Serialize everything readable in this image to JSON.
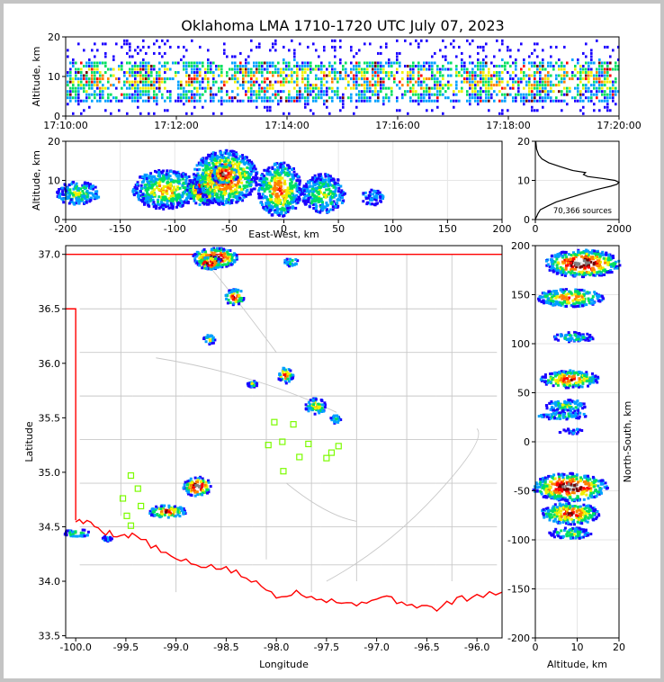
{
  "title": "Oklahoma LMA 1710-1720 UTC July 07, 2023",
  "colors": {
    "frame": "#c4c4c4",
    "state_border": "#ff0000",
    "county_lines": "#c8c8c8",
    "station_marker": "#7cfc00",
    "histogram_line": "#000000",
    "density_scale": [
      "#1a00ff",
      "#00a0ff",
      "#00e060",
      "#f0f000",
      "#ff8000",
      "#ff0000",
      "#700000",
      "#808080",
      "#e8e8e8"
    ]
  },
  "chart_data": [
    {
      "id": "time_altitude",
      "type": "heatmap",
      "ylabel": "Altitude, km",
      "xlabel": "",
      "ylim": [
        0,
        20
      ],
      "yticks": [
        "0",
        "10",
        "20"
      ],
      "xlim": [
        "17:10:00",
        "17:20:00"
      ],
      "xticks": [
        "17:10:00",
        "17:12:00",
        "17:14:00",
        "17:16:00",
        "17:18:00",
        "17:20:00"
      ],
      "dense_band_km": [
        3,
        14
      ],
      "activity_peak_km": 9
    },
    {
      "id": "eastwest_altitude",
      "type": "heatmap",
      "xlabel": "East-West, km",
      "ylabel": "Altitude, km",
      "xlim": [
        -200,
        200
      ],
      "ylim": [
        0,
        20
      ],
      "xticks": [
        "-200",
        "-150",
        "-100",
        "-50",
        "0",
        "50",
        "100",
        "150",
        "200"
      ],
      "yticks": [
        "0",
        "10",
        "20"
      ],
      "clusters": [
        {
          "x": -190,
          "y": 7,
          "w": 40,
          "h": 6,
          "level": 3
        },
        {
          "x": -110,
          "y": 8,
          "w": 60,
          "h": 10,
          "level": 4
        },
        {
          "x": -75,
          "y": 8,
          "w": 30,
          "h": 8,
          "level": 7
        },
        {
          "x": -55,
          "y": 11,
          "w": 60,
          "h": 14,
          "level": 6
        },
        {
          "x": -55,
          "y": 12,
          "w": 25,
          "h": 5,
          "level": 8
        },
        {
          "x": -5,
          "y": 8,
          "w": 40,
          "h": 14,
          "level": 5
        },
        {
          "x": 35,
          "y": 7,
          "w": 40,
          "h": 10,
          "level": 3
        },
        {
          "x": 80,
          "y": 6,
          "w": 20,
          "h": 4,
          "level": 1
        }
      ]
    },
    {
      "id": "altitude_histogram",
      "type": "line",
      "xlim": [
        0,
        2000
      ],
      "ylim": [
        0,
        20
      ],
      "xticks": [
        "0",
        "2000"
      ],
      "yticks": [
        "0",
        "10",
        "20"
      ],
      "annotation": "70,366 sources",
      "x": [
        0,
        20,
        40,
        60,
        120,
        300,
        500,
        800,
        1100,
        1400,
        1600,
        1800,
        1950,
        2000,
        1900,
        1600,
        1250,
        1150,
        1200,
        900,
        600,
        320,
        160,
        80,
        30,
        10
      ],
      "y": [
        0,
        0.5,
        1,
        1.5,
        2.5,
        3.5,
        4.5,
        5.5,
        6.5,
        7.5,
        8,
        8.5,
        9,
        9.5,
        10,
        10.5,
        11,
        11.5,
        12,
        12.5,
        13.5,
        14.5,
        15.5,
        16.5,
        18,
        20
      ]
    },
    {
      "id": "plan_view",
      "type": "heatmap",
      "xlabel": "Longitude",
      "ylabel": "Latitude",
      "xlim": [
        -100.1,
        -95.75
      ],
      "ylim": [
        33.48,
        37.08
      ],
      "xticks": [
        "-100.0",
        "-99.5",
        "-99.0",
        "-98.5",
        "-98.0",
        "-97.5",
        "-97.0",
        "-96.5",
        "-96.0"
      ],
      "yticks": [
        "33.5",
        "34.0",
        "34.5",
        "35.0",
        "35.5",
        "36.0",
        "36.5",
        "37.0"
      ],
      "stations": [
        {
          "lon": -99.45,
          "lat": 34.97
        },
        {
          "lon": -99.38,
          "lat": 34.85
        },
        {
          "lon": -99.53,
          "lat": 34.76
        },
        {
          "lon": -99.35,
          "lat": 34.69
        },
        {
          "lon": -99.49,
          "lat": 34.6
        },
        {
          "lon": -99.45,
          "lat": 34.51
        },
        {
          "lon": -98.08,
          "lat": 35.25
        },
        {
          "lon": -97.94,
          "lat": 35.28
        },
        {
          "lon": -98.02,
          "lat": 35.46
        },
        {
          "lon": -97.83,
          "lat": 35.44
        },
        {
          "lon": -97.93,
          "lat": 35.01
        },
        {
          "lon": -97.77,
          "lat": 35.14
        },
        {
          "lon": -97.68,
          "lat": 35.26
        },
        {
          "lon": -97.5,
          "lat": 35.13
        },
        {
          "lon": -97.45,
          "lat": 35.18
        },
        {
          "lon": -97.38,
          "lat": 35.24
        }
      ],
      "cells": [
        {
          "lon": -98.62,
          "lat": 36.98,
          "w": 0.45,
          "h": 0.18,
          "level": 8
        },
        {
          "lon": -98.68,
          "lat": 36.93,
          "w": 0.25,
          "h": 0.12,
          "level": 8
        },
        {
          "lon": -98.43,
          "lat": 36.62,
          "w": 0.2,
          "h": 0.15,
          "level": 6
        },
        {
          "lon": -97.86,
          "lat": 36.94,
          "w": 0.15,
          "h": 0.08,
          "level": 3
        },
        {
          "lon": -98.68,
          "lat": 36.23,
          "w": 0.12,
          "h": 0.1,
          "level": 4
        },
        {
          "lon": -97.92,
          "lat": 35.9,
          "w": 0.15,
          "h": 0.15,
          "level": 6
        },
        {
          "lon": -98.25,
          "lat": 35.82,
          "w": 0.1,
          "h": 0.06,
          "level": 4
        },
        {
          "lon": -97.62,
          "lat": 35.62,
          "w": 0.22,
          "h": 0.15,
          "level": 4
        },
        {
          "lon": -97.42,
          "lat": 35.5,
          "w": 0.1,
          "h": 0.08,
          "level": 2
        },
        {
          "lon": -98.8,
          "lat": 34.88,
          "w": 0.28,
          "h": 0.18,
          "level": 8
        },
        {
          "lon": -99.1,
          "lat": 34.65,
          "w": 0.38,
          "h": 0.12,
          "level": 6
        },
        {
          "lon": -100.0,
          "lat": 34.45,
          "w": 0.25,
          "h": 0.08,
          "level": 3
        },
        {
          "lon": -99.7,
          "lat": 34.4,
          "w": 0.1,
          "h": 0.05,
          "level": 1
        }
      ]
    },
    {
      "id": "northsouth_altitude",
      "type": "heatmap",
      "xlabel": "Altitude, km",
      "ylabel": "North-South, km",
      "xlim": [
        0,
        20
      ],
      "ylim": [
        -200,
        200
      ],
      "xticks": [
        "0",
        "10",
        "20"
      ],
      "yticks": [
        "-200",
        "-150",
        "-100",
        "-50",
        "0",
        "50",
        "100",
        "150",
        "200"
      ],
      "clusters": [
        {
          "x": 11,
          "y": 183,
          "w": 18,
          "h": 28,
          "level": 8
        },
        {
          "x": 8,
          "y": 148,
          "w": 16,
          "h": 18,
          "level": 5
        },
        {
          "x": 9,
          "y": 108,
          "w": 10,
          "h": 10,
          "level": 2
        },
        {
          "x": 8,
          "y": 65,
          "w": 14,
          "h": 18,
          "level": 6
        },
        {
          "x": 7,
          "y": 38,
          "w": 10,
          "h": 12,
          "level": 3
        },
        {
          "x": 6,
          "y": 28,
          "w": 12,
          "h": 8,
          "level": 2
        },
        {
          "x": 8,
          "y": 12,
          "w": 6,
          "h": 6,
          "level": 1
        },
        {
          "x": 8,
          "y": -45,
          "w": 18,
          "h": 28,
          "level": 8
        },
        {
          "x": 8,
          "y": -72,
          "w": 14,
          "h": 22,
          "level": 6
        },
        {
          "x": 8,
          "y": -92,
          "w": 10,
          "h": 12,
          "level": 3
        }
      ]
    }
  ]
}
